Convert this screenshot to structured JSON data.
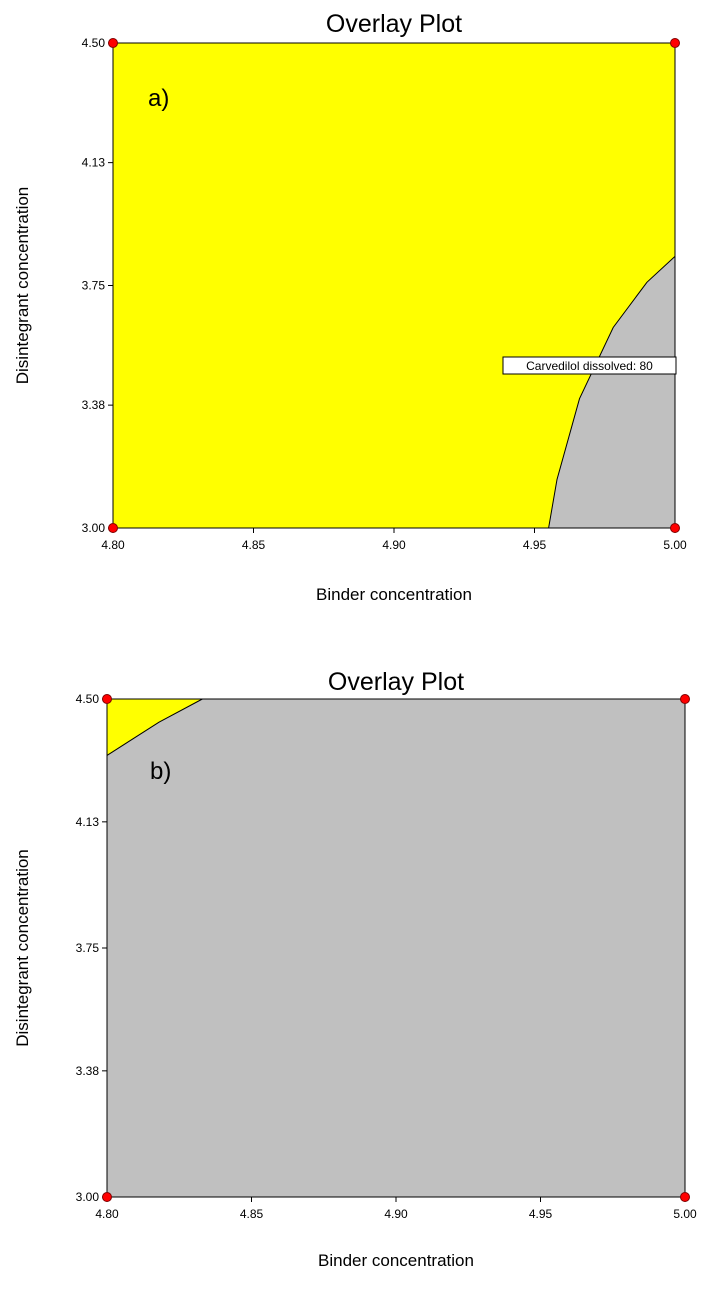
{
  "chart_data": [
    {
      "type": "overlay-contour",
      "panel_label": "a)",
      "title": "Overlay Plot",
      "xlabel": "Binder concentration",
      "ylabel": "Disintegrant concentration",
      "xlim": [
        4.8,
        5.0
      ],
      "ylim": [
        3.0,
        4.5
      ],
      "xticks": [
        "4.80",
        "4.85",
        "4.90",
        "4.95",
        "5.00"
      ],
      "yticks": [
        "3.00",
        "3.38",
        "3.75",
        "4.13",
        "4.50"
      ],
      "feasible_color": "#ffff00",
      "infeasible_color": "#c0c0c0",
      "feasible_region": [
        [
          4.8,
          3.0
        ],
        [
          4.955,
          3.0
        ],
        [
          4.958,
          3.15
        ],
        [
          4.966,
          3.4
        ],
        [
          4.978,
          3.62
        ],
        [
          4.99,
          3.76
        ],
        [
          5.0,
          3.84
        ],
        [
          5.0,
          4.5
        ],
        [
          4.8,
          4.5
        ]
      ],
      "boundary": [
        [
          4.955,
          3.0
        ],
        [
          4.958,
          3.15
        ],
        [
          4.966,
          3.4
        ],
        [
          4.978,
          3.62
        ],
        [
          4.99,
          3.76
        ],
        [
          5.0,
          3.84
        ]
      ],
      "contour_label": "Carvedilol dissolved: 80",
      "design_points": [
        [
          4.8,
          4.5
        ],
        [
          5.0,
          4.5
        ],
        [
          4.8,
          3.0
        ],
        [
          5.0,
          3.0
        ]
      ]
    },
    {
      "type": "overlay-contour",
      "panel_label": "b)",
      "title": "Overlay Plot",
      "xlabel": "Binder concentration",
      "ylabel": "Disintegrant concentration",
      "xlim": [
        4.8,
        5.0
      ],
      "ylim": [
        3.0,
        4.5
      ],
      "xticks": [
        "4.80",
        "4.85",
        "4.90",
        "4.95",
        "5.00"
      ],
      "yticks": [
        "3.00",
        "3.38",
        "3.75",
        "4.13",
        "4.50"
      ],
      "feasible_color": "#ffff00",
      "infeasible_color": "#c0c0c0",
      "feasible_region": [
        [
          4.8,
          4.5
        ],
        [
          4.833,
          4.5
        ],
        [
          4.818,
          4.43
        ],
        [
          4.8,
          4.33
        ]
      ],
      "boundary": [
        [
          4.833,
          4.5
        ],
        [
          4.818,
          4.43
        ],
        [
          4.8,
          4.33
        ]
      ],
      "contour_label": "",
      "design_points": [
        [
          4.8,
          4.5
        ],
        [
          5.0,
          4.5
        ],
        [
          4.8,
          3.0
        ],
        [
          5.0,
          3.0
        ]
      ]
    }
  ]
}
